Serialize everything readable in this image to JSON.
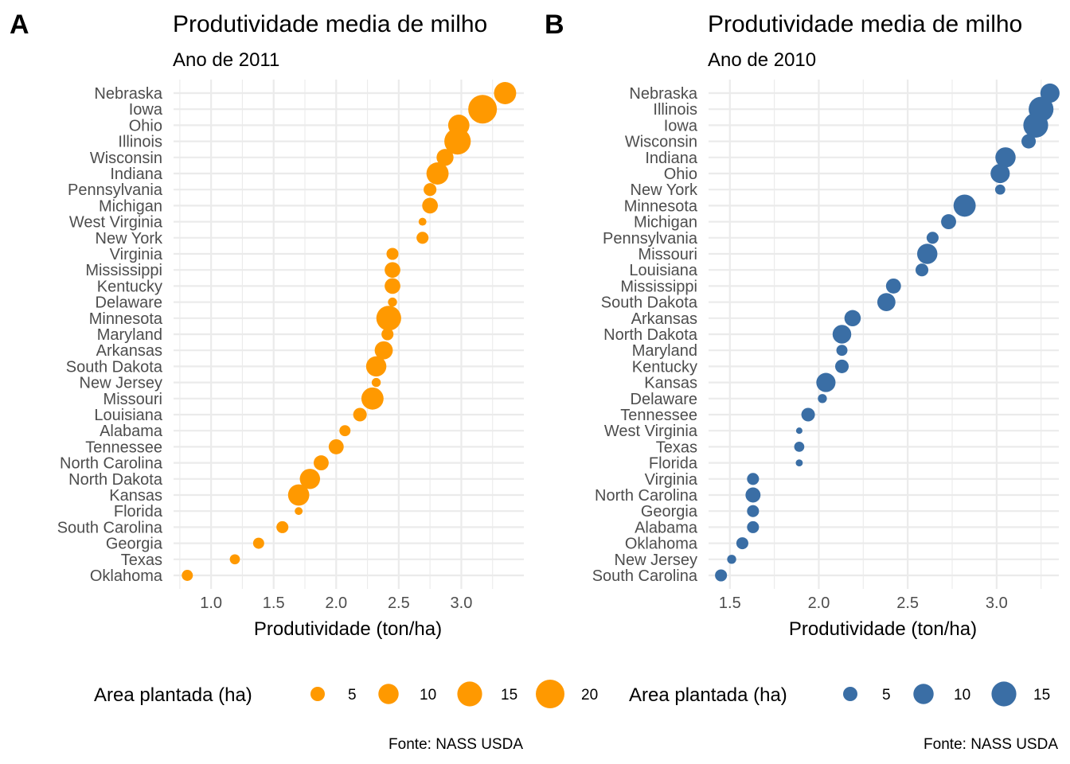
{
  "chart_data": [
    {
      "type": "scatter",
      "tag": "A",
      "title": "Produtividade media de milho",
      "subtitle": "Ano de 2011",
      "xlabel": "Produtividade (ton/ha)",
      "ylabel": "",
      "xlim": [
        0.7,
        3.5
      ],
      "xticks": [
        "1.0",
        "1.5",
        "2.0",
        "2.5",
        "3.0"
      ],
      "color": "#ff9900",
      "size_legend": {
        "title": "Area plantada (ha)",
        "labels": [
          "5",
          "10",
          "15",
          "20"
        ],
        "values": [
          5,
          10,
          15,
          20
        ]
      },
      "caption": "Fonte: NASS USDA",
      "points": [
        {
          "state": "Nebraska",
          "x": 3.35,
          "size": 12
        },
        {
          "state": "Iowa",
          "x": 3.17,
          "size": 20
        },
        {
          "state": "Ohio",
          "x": 2.98,
          "size": 11
        },
        {
          "state": "Illinois",
          "x": 2.97,
          "size": 17
        },
        {
          "state": "Wisconsin",
          "x": 2.87,
          "size": 7
        },
        {
          "state": "Indiana",
          "x": 2.81,
          "size": 12
        },
        {
          "state": "Pennsylvania",
          "x": 2.75,
          "size": 4
        },
        {
          "state": "Michigan",
          "x": 2.75,
          "size": 6
        },
        {
          "state": "West Virginia",
          "x": 2.69,
          "size": 1.5
        },
        {
          "state": "New York",
          "x": 2.69,
          "size": 3.5
        },
        {
          "state": "Virginia",
          "x": 2.45,
          "size": 3.5
        },
        {
          "state": "Mississippi",
          "x": 2.45,
          "size": 6
        },
        {
          "state": "Kentucky",
          "x": 2.45,
          "size": 6
        },
        {
          "state": "Delaware",
          "x": 2.45,
          "size": 2
        },
        {
          "state": "Minnesota",
          "x": 2.42,
          "size": 15
        },
        {
          "state": "Maryland",
          "x": 2.41,
          "size": 3.5
        },
        {
          "state": "Arkansas",
          "x": 2.38,
          "size": 8
        },
        {
          "state": "South Dakota",
          "x": 2.32,
          "size": 10
        },
        {
          "state": "New Jersey",
          "x": 2.32,
          "size": 2
        },
        {
          "state": "Missouri",
          "x": 2.29,
          "size": 12
        },
        {
          "state": "Louisiana",
          "x": 2.19,
          "size": 4.5
        },
        {
          "state": "Alabama",
          "x": 2.07,
          "size": 3
        },
        {
          "state": "Tennessee",
          "x": 2.0,
          "size": 5.5
        },
        {
          "state": "North Carolina",
          "x": 1.88,
          "size": 5.5
        },
        {
          "state": "North Dakota",
          "x": 1.79,
          "size": 10
        },
        {
          "state": "Kansas",
          "x": 1.7,
          "size": 11
        },
        {
          "state": "Florida",
          "x": 1.7,
          "size": 1.5
        },
        {
          "state": "South Carolina",
          "x": 1.57,
          "size": 3.5
        },
        {
          "state": "Georgia",
          "x": 1.38,
          "size": 3
        },
        {
          "state": "Texas",
          "x": 1.19,
          "size": 2.5
        },
        {
          "state": "Oklahoma",
          "x": 0.81,
          "size": 3
        }
      ]
    },
    {
      "type": "scatter",
      "tag": "B",
      "title": "Produtividade media de milho",
      "subtitle": "Ano de 2010",
      "xlabel": "Produtividade (ton/ha)",
      "ylabel": "",
      "xlim": [
        1.38,
        3.35
      ],
      "xticks": [
        "1.5",
        "2.0",
        "2.5",
        "3.0"
      ],
      "color": "#3a6ea5",
      "size_legend": {
        "title": "Area plantada (ha)",
        "labels": [
          "5",
          "10",
          "15"
        ],
        "values": [
          5,
          10,
          15
        ]
      },
      "caption": "Fonte: NASS USDA",
      "points": [
        {
          "state": "Nebraska",
          "x": 3.3,
          "size": 9
        },
        {
          "state": "Illinois",
          "x": 3.25,
          "size": 15
        },
        {
          "state": "Iowa",
          "x": 3.22,
          "size": 15
        },
        {
          "state": "Wisconsin",
          "x": 3.18,
          "size": 5
        },
        {
          "state": "Indiana",
          "x": 3.05,
          "size": 10
        },
        {
          "state": "Ohio",
          "x": 3.02,
          "size": 9
        },
        {
          "state": "New York",
          "x": 3.02,
          "size": 2.5
        },
        {
          "state": "Minnesota",
          "x": 2.82,
          "size": 12
        },
        {
          "state": "Michigan",
          "x": 2.73,
          "size": 5.5
        },
        {
          "state": "Pennsylvania",
          "x": 2.64,
          "size": 3.5
        },
        {
          "state": "Missouri",
          "x": 2.61,
          "size": 10
        },
        {
          "state": "Louisiana",
          "x": 2.58,
          "size": 4
        },
        {
          "state": "Mississippi",
          "x": 2.42,
          "size": 5.5
        },
        {
          "state": "South Dakota",
          "x": 2.38,
          "size": 8
        },
        {
          "state": "Arkansas",
          "x": 2.19,
          "size": 6.5
        },
        {
          "state": "North Dakota",
          "x": 2.13,
          "size": 8.5
        },
        {
          "state": "Maryland",
          "x": 2.13,
          "size": 3
        },
        {
          "state": "Kentucky",
          "x": 2.13,
          "size": 4.5
        },
        {
          "state": "Kansas",
          "x": 2.04,
          "size": 9
        },
        {
          "state": "Delaware",
          "x": 2.02,
          "size": 2
        },
        {
          "state": "Tennessee",
          "x": 1.94,
          "size": 4.5
        },
        {
          "state": "West Virginia",
          "x": 1.89,
          "size": 1
        },
        {
          "state": "Texas",
          "x": 1.89,
          "size": 2.5
        },
        {
          "state": "Florida",
          "x": 1.89,
          "size": 1.2
        },
        {
          "state": "Virginia",
          "x": 1.63,
          "size": 3.5
        },
        {
          "state": "North Carolina",
          "x": 1.63,
          "size": 5.5
        },
        {
          "state": "Georgia",
          "x": 1.63,
          "size": 3.5
        },
        {
          "state": "Alabama",
          "x": 1.63,
          "size": 3.5
        },
        {
          "state": "Oklahoma",
          "x": 1.57,
          "size": 3.5
        },
        {
          "state": "New Jersey",
          "x": 1.51,
          "size": 2
        },
        {
          "state": "South Carolina",
          "x": 1.45,
          "size": 3.5
        }
      ]
    }
  ]
}
